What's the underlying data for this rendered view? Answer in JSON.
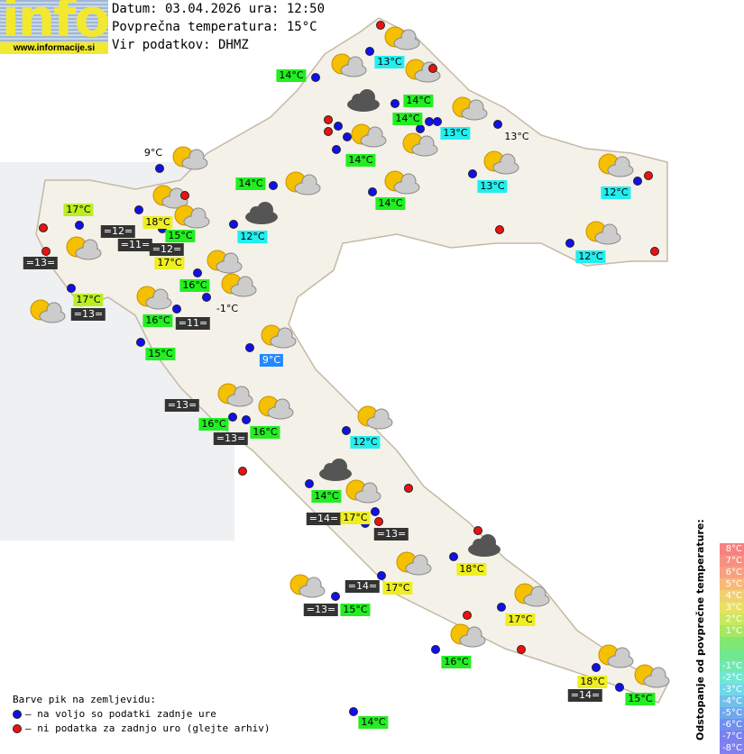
{
  "header": {
    "logo_text": "info",
    "logo_url": "www.informacije.si",
    "date_line": "Datum: 03.04.2026 ura: 12:50",
    "avg_temp_line": "Povprečna temperatura: 15°C",
    "source_line": "Vir podatkov: DHMZ"
  },
  "colors": {
    "green": "#22ee22",
    "cyan": "#22eeee",
    "yellow": "#eeee22",
    "yellowgreen": "#bbee22",
    "blue": "#2288ff",
    "dark": "#333333",
    "blue_dot": "#1010ee",
    "red_dot": "#ee1010"
  },
  "stations": [
    {
      "text": "14°C",
      "style": "green"
    },
    {
      "text": "13°C",
      "style": "cyan"
    },
    {
      "text": "14°C",
      "style": "green"
    },
    {
      "text": "14°C",
      "style": "green"
    },
    {
      "text": "13°C",
      "style": "cyan"
    },
    {
      "text": "13°C",
      "style": "plain"
    },
    {
      "text": "14°C",
      "style": "green"
    },
    {
      "text": "14°C",
      "style": "green"
    },
    {
      "text": "13°C",
      "style": "cyan"
    },
    {
      "text": "12°C",
      "style": "cyan"
    },
    {
      "text": "14°C",
      "style": "green"
    },
    {
      "text": "9°C",
      "style": "plain"
    },
    {
      "text": "17°C",
      "style": "yellowgreen"
    },
    {
      "text": "18°C",
      "style": "yellow"
    },
    {
      "text": "=12=",
      "style": "dark"
    },
    {
      "text": "15°C",
      "style": "green"
    },
    {
      "text": "=11=",
      "style": "dark"
    },
    {
      "text": "=12=",
      "style": "dark"
    },
    {
      "text": "17°C",
      "style": "yellow"
    },
    {
      "text": "12°C",
      "style": "cyan"
    },
    {
      "text": "12°C",
      "style": "cyan"
    },
    {
      "text": "=13=",
      "style": "dark"
    },
    {
      "text": "16°C",
      "style": "green"
    },
    {
      "text": "17°C",
      "style": "yellowgreen"
    },
    {
      "text": "=13=",
      "style": "dark"
    },
    {
      "text": "16°C",
      "style": "green"
    },
    {
      "text": "=11=",
      "style": "dark"
    },
    {
      "text": "-1°C",
      "style": "plain"
    },
    {
      "text": "15°C",
      "style": "green"
    },
    {
      "text": "9°C",
      "style": "blue"
    },
    {
      "text": "=13=",
      "style": "dark"
    },
    {
      "text": "16°C",
      "style": "green"
    },
    {
      "text": "16°C",
      "style": "green"
    },
    {
      "text": "=13=",
      "style": "dark"
    },
    {
      "text": "12°C",
      "style": "cyan"
    },
    {
      "text": "14°C",
      "style": "green"
    },
    {
      "text": "=14=",
      "style": "dark"
    },
    {
      "text": "17°C",
      "style": "yellow"
    },
    {
      "text": "=13=",
      "style": "dark"
    },
    {
      "text": "18°C",
      "style": "yellow"
    },
    {
      "text": "=14=",
      "style": "dark"
    },
    {
      "text": "17°C",
      "style": "yellow"
    },
    {
      "text": "=13=",
      "style": "dark"
    },
    {
      "text": "15°C",
      "style": "green"
    },
    {
      "text": "17°C",
      "style": "yellow"
    },
    {
      "text": "16°C",
      "style": "green"
    },
    {
      "text": "18°C",
      "style": "yellow"
    },
    {
      "text": "=14=",
      "style": "dark"
    },
    {
      "text": "15°C",
      "style": "green"
    },
    {
      "text": "14°C",
      "style": "green"
    }
  ],
  "legend": {
    "title": "Barve pik na zemljevidu:",
    "blue": "– na voljo so podatki zadnje ure",
    "red": "– ni podatka za zadnjo uro (glejte arhiv)"
  },
  "scale": {
    "title": "Odstopanje od povprečne temperature:",
    "steps": [
      {
        "label": "8°C",
        "color": "#f88080"
      },
      {
        "label": "7°C",
        "color": "#f89080"
      },
      {
        "label": "6°C",
        "color": "#f8a080"
      },
      {
        "label": "5°C",
        "color": "#f8b878"
      },
      {
        "label": "4°C",
        "color": "#f0d070"
      },
      {
        "label": "3°C",
        "color": "#e8e060"
      },
      {
        "label": "2°C",
        "color": "#c8e860"
      },
      {
        "label": "1°C",
        "color": "#a8e860"
      },
      {
        "label": "",
        "color": "#80e870"
      },
      {
        "label": "",
        "color": "#70e890"
      },
      {
        "label": "-1°C",
        "color": "#70e8b0"
      },
      {
        "label": "-2°C",
        "color": "#70e8d0"
      },
      {
        "label": "-3°C",
        "color": "#70d8e8"
      },
      {
        "label": "-4°C",
        "color": "#70c0e8"
      },
      {
        "label": "-5°C",
        "color": "#70a8f0"
      },
      {
        "label": "-6°C",
        "color": "#7090f0"
      },
      {
        "label": "-7°C",
        "color": "#7880f0"
      },
      {
        "label": "-8°C",
        "color": "#8080f0"
      }
    ]
  }
}
